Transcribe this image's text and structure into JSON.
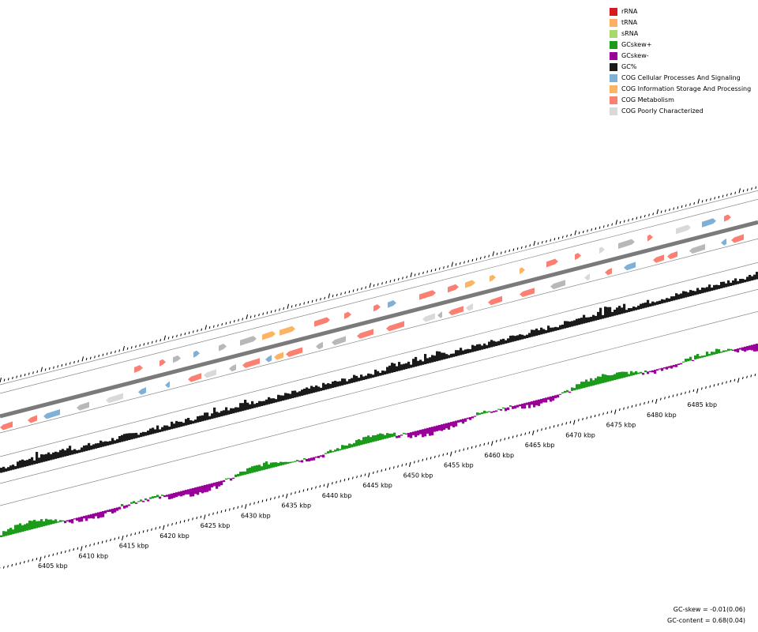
{
  "legend": {
    "items": [
      {
        "label": "rRNA",
        "color": "#d7191c"
      },
      {
        "label": "tRNA",
        "color": "#fdae61"
      },
      {
        "label": "sRNA",
        "color": "#a6d96a"
      },
      {
        "label": "GCskew+",
        "color": "#1a9b1a"
      },
      {
        "label": "GCskew-",
        "color": "#990099"
      },
      {
        "label": "GC%",
        "color": "#1a1a1a"
      },
      {
        "label": "COG Cellular Processes And Signaling",
        "color": "#7fb0d8"
      },
      {
        "label": "COG Information Storage And Processing",
        "color": "#fdb462"
      },
      {
        "label": "COG Metabolism",
        "color": "#fb8072"
      },
      {
        "label": "COG Poorly Characterized",
        "color": "#d9d9d9"
      }
    ]
  },
  "stats": {
    "gc_skew": "GC-skew = -0.01(0.06)",
    "gc_content": "GC-content = 0.68(0.04)"
  },
  "axis": {
    "unit": "kbp",
    "labels": [
      "6405 kbp",
      "6410 kbp",
      "6415 kbp",
      "6420 kbp",
      "6425 kbp",
      "6430 kbp",
      "6435 kbp",
      "6440 kbp",
      "6445 kbp",
      "6450 kbp",
      "6455 kbp",
      "6460 kbp",
      "6465 kbp",
      "6470 kbp",
      "6475 kbp",
      "6480 kbp",
      "6485 kbp"
    ]
  },
  "colors": {
    "backbone": "#7a7a7a",
    "track_line": "#888888",
    "gc": "#1a1a1a",
    "skew_pos": "#1a9b1a",
    "skew_neg": "#990099",
    "cog_cell": "#7fb0d8",
    "cog_info": "#fdb462",
    "cog_met": "#fb8072",
    "cog_poor": "#d9d9d9",
    "rna": "#b8b8b8"
  }
}
